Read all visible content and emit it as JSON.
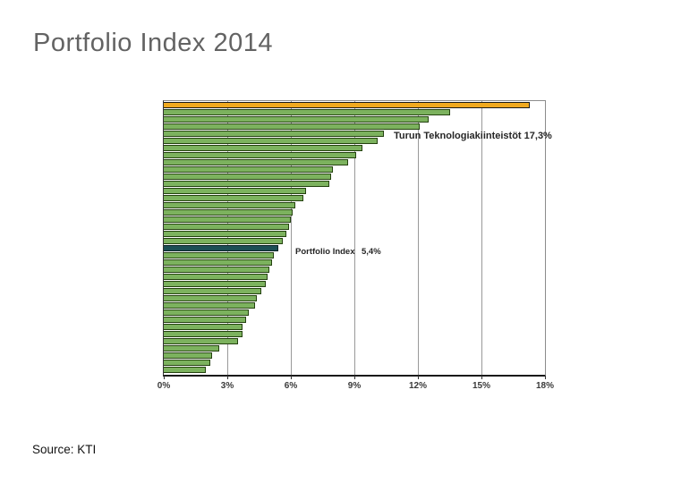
{
  "page": {
    "title": "Portfolio Index 2014",
    "source": "Source: KTI"
  },
  "colors": {
    "bar_green": "#7cb25e",
    "bar_green_border": "#24420f",
    "bar_orange": "#f0a91f",
    "bar_orange_border": "#1a1a1a",
    "bar_dark": "#1c4f55",
    "bar_dark_border": "#0c2327",
    "gridline": "#999999",
    "axis_line": "#1a1a1a",
    "annotation_text": "#262626",
    "tick_text": "#3a3a3a",
    "title_text": "#636363"
  },
  "chart_data": {
    "type": "bar",
    "orientation": "horizontal",
    "xlim": [
      0,
      18
    ],
    "grid": true,
    "x_tick_labels": [
      "0%",
      "3%",
      "6%",
      "9%",
      "12%",
      "15%",
      "18%"
    ],
    "values": [
      17.3,
      13.5,
      12.5,
      12.1,
      10.4,
      10.1,
      9.4,
      9.1,
      8.7,
      8.0,
      7.9,
      7.8,
      6.7,
      6.6,
      6.2,
      6.1,
      6.0,
      5.9,
      5.8,
      5.6,
      5.4,
      5.2,
      5.1,
      5.0,
      4.9,
      4.8,
      4.6,
      4.4,
      4.3,
      4.0,
      3.9,
      3.7,
      3.7,
      3.5,
      2.6,
      2.3,
      2.2,
      2.0
    ],
    "highlights": {
      "orange_index": 0,
      "orange_label": "Turun Teknologiakiinteistöt",
      "orange_value": "17,3%",
      "dark_index": 20,
      "dark_label": "Portfolio Index",
      "dark_value": "5,4%"
    },
    "annotations": [
      {
        "text": "Turun Teknologiakiinteistöt 17,3%"
      },
      {
        "text": "Portfolio Index",
        "value": "5,4%"
      }
    ]
  }
}
